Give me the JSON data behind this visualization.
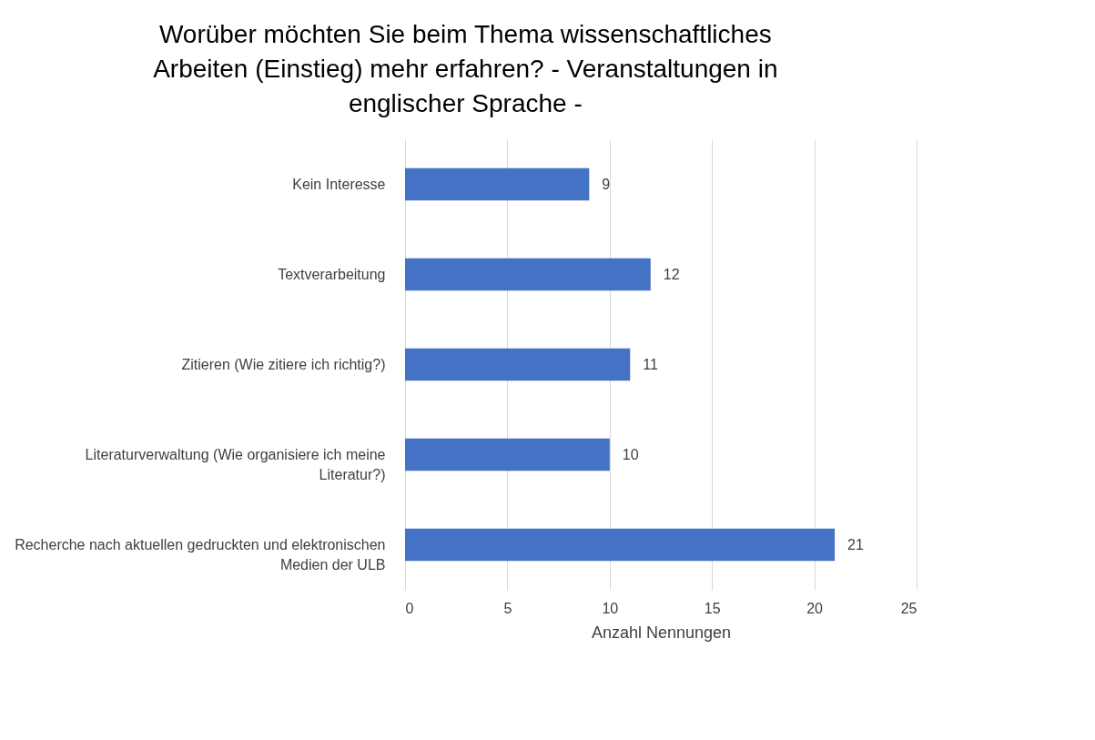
{
  "chart_data": {
    "type": "bar",
    "orientation": "horizontal",
    "title": "Worüber möchten Sie beim Thema wissenschaftliches Arbeiten (Einstieg) mehr erfahren?  - Veranstaltungen in englischer Sprache -",
    "xlabel": "Anzahl Nennungen",
    "categories": [
      "Kein Interesse",
      "Textverarbeitung",
      "Zitieren (Wie zitiere ich richtig?)",
      "Literaturverwaltung (Wie organisiere ich meine Literatur?)",
      "Recherche nach aktuellen gedruckten und elektronischen Medien der ULB"
    ],
    "values": [
      9,
      12,
      11,
      10,
      21
    ],
    "color": "#4472c4",
    "xlim": [
      0,
      25
    ],
    "xticks": [
      0,
      5,
      10,
      15,
      20,
      25
    ],
    "grid": "x",
    "data_labels": true
  }
}
